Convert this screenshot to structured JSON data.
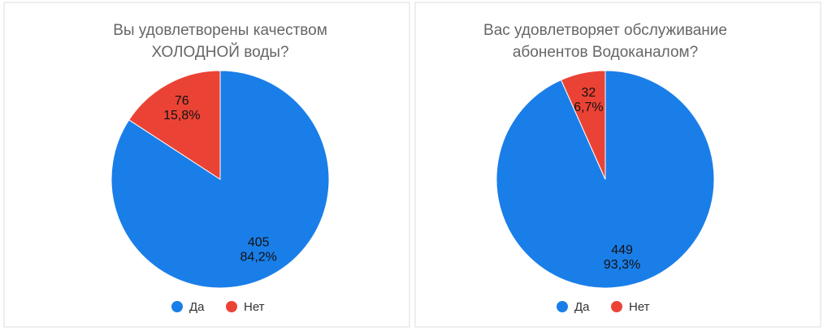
{
  "chart_data": [
    {
      "type": "pie",
      "title": [
        "Вы удовлетворены качеством",
        "ХОЛОДНОЙ воды?"
      ],
      "categories": [
        "Да",
        "Нет"
      ],
      "values": [
        405,
        76
      ],
      "percentages": [
        84.2,
        15.8
      ],
      "percentage_labels": [
        "84,2%",
        "15,8%"
      ],
      "colors": [
        "#1a7ee8",
        "#ea4335"
      ]
    },
    {
      "type": "pie",
      "title": [
        "Вас удовлетворяет обслуживание",
        "абонентов Водоканалом?"
      ],
      "categories": [
        "Да",
        "Нет"
      ],
      "values": [
        449,
        32
      ],
      "percentages": [
        93.3,
        6.7
      ],
      "percentage_labels": [
        "93,3%",
        "6,7%"
      ],
      "colors": [
        "#1a7ee8",
        "#ea4335"
      ]
    }
  ]
}
